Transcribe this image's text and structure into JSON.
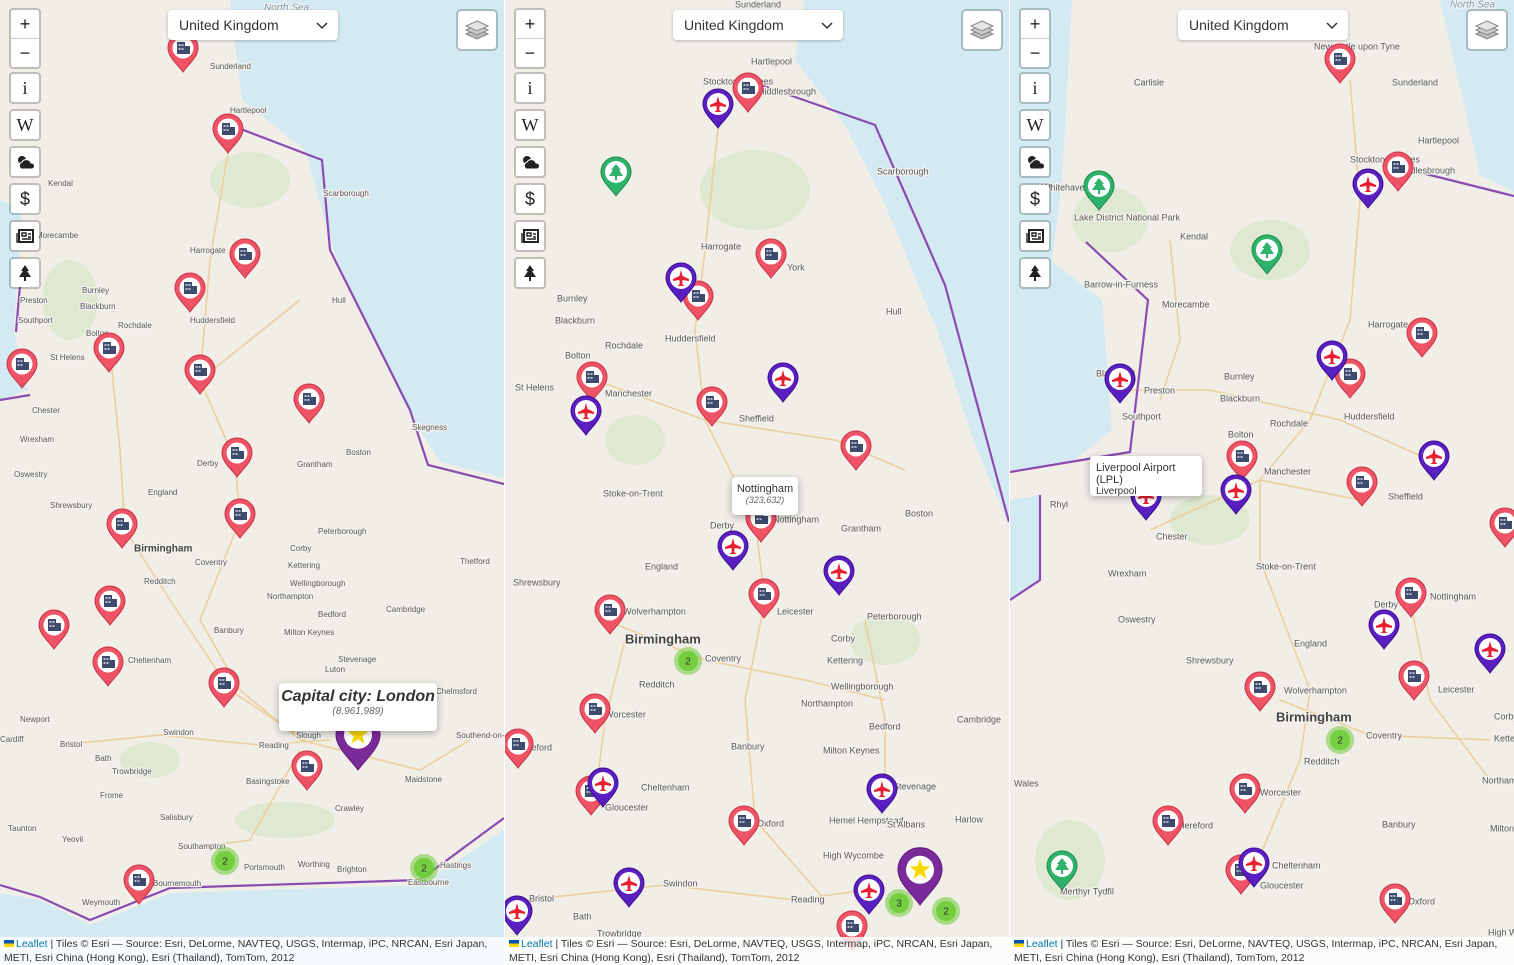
{
  "panels": [
    {
      "country_select": "United Kingdom",
      "zoom_in": "+",
      "zoom_out": "−",
      "info_button": "i",
      "wiki_button": "W",
      "currency_button": "$",
      "popup": {
        "title": "Capital city: London",
        "subtitle": "(8,961,989)"
      },
      "clusters": [
        2,
        2
      ],
      "places": [
        "North Sea",
        "Sunderland",
        "Hartlepool",
        "Scarborough",
        "Kendal",
        "Morecambe",
        "Harrogate",
        "Burnley",
        "Preston",
        "Blackburn",
        "Southport",
        "Huddersfield",
        "Rochdale",
        "Bolton",
        "St Helens",
        "Hull",
        "Chester",
        "Wrexham",
        "Derby",
        "Grantham",
        "Boston",
        "Skegness",
        "Oswestry",
        "England",
        "Shrewsbury",
        "Birmingham",
        "Coventry",
        "Peterborough",
        "Corby",
        "Kettering",
        "Wellingborough",
        "Northampton",
        "Bedford",
        "Cambridge",
        "Milton Keynes",
        "Banbury",
        "Cheltenham",
        "Stevenage",
        "Luton",
        "Redditch",
        "Thetford",
        "Chelmsford",
        "Newport",
        "Cardiff",
        "Bristol",
        "Bath",
        "Swindon",
        "Reading",
        "Slough",
        "Southend-on-Sea",
        "Basingstoke",
        "Maidstone",
        "Trowbridge",
        "Frome",
        "Crawley",
        "Salisbury",
        "Southampton",
        "Portsmouth",
        "Worthing",
        "Brighton",
        "Eastbourne",
        "Hastings",
        "Bournemouth",
        "Weymouth",
        "Taunton",
        "Yeovil"
      ],
      "attribution": {
        "leaflet": "Leaflet",
        "text": "| Tiles © Esri — Source: Esri, DeLorme, NAVTEQ, USGS, Intermap, iPC, NRCAN, Esri Japan, METI, Esri China (Hong Kong), Esri (Thailand), TomTom, 2012"
      }
    },
    {
      "country_select": "United Kingdom",
      "zoom_in": "+",
      "zoom_out": "−",
      "info_button": "i",
      "wiki_button": "W",
      "currency_button": "$",
      "popup": {
        "title": "Nottingham",
        "subtitle": "(323,632)"
      },
      "clusters": [
        2,
        3,
        2
      ],
      "places": [
        "Sunderland",
        "Hartlepool",
        "Stockton-on-Tees",
        "Middlesbrough",
        "Scarborough",
        "Harrogate",
        "York",
        "Burnley",
        "Blackburn",
        "Huddersfield",
        "Rochdale",
        "Hull",
        "Bolton",
        "Manchester",
        "St Helens",
        "Sheffield",
        "Stoke-on-Trent",
        "Derby",
        "Nottingham",
        "Grantham",
        "Boston",
        "England",
        "Shrewsbury",
        "Wolverhampton",
        "Leicester",
        "Peterborough",
        "Birmingham",
        "Corby",
        "Coventry",
        "Kettering",
        "Redditch",
        "Wellingborough",
        "Northampton",
        "Worcester",
        "Bedford",
        "Cambridge",
        "Banbury",
        "Milton Keynes",
        "Hereford",
        "Cheltenham",
        "Stevenage",
        "Gloucester",
        "Oxford",
        "Hemel Hempstead",
        "St Albans",
        "Harlow",
        "High Wycombe",
        "Swindon",
        "Bristol",
        "Reading",
        "Bath",
        "Trowbridge"
      ],
      "attribution": {
        "leaflet": "Leaflet",
        "text": "| Tiles © Esri — Source: Esri, DeLorme, NAVTEQ, USGS, Intermap, iPC, NRCAN, Esri Japan, METI, Esri China (Hong Kong), Esri (Thailand), TomTom, 2012"
      }
    },
    {
      "country_select": "United Kingdom",
      "zoom_in": "+",
      "zoom_out": "−",
      "info_button": "i",
      "wiki_button": "W",
      "currency_button": "$",
      "popup": {
        "title": "Liverpool Airport (LPL)",
        "subtitle": "Liverpool"
      },
      "clusters": [
        2
      ],
      "places": [
        "North Sea",
        "Newcastle upon Tyne",
        "Carlisle",
        "Sunderland",
        "Hartlepool",
        "Stockton-on-Tees",
        "Middlesbrough",
        "Whitehaven",
        "Lake District National Park",
        "Kendal",
        "Barrow-in-Furness",
        "Morecambe",
        "Harrogate",
        "Blackpool",
        "Preston",
        "Burnley",
        "Southport",
        "Blackburn",
        "Huddersfield",
        "Rochdale",
        "Bolton",
        "Manchester",
        "Sheffield",
        "Rhyl",
        "Chester",
        "Wrexham",
        "Stoke-on-Trent",
        "Derby",
        "Nottingham",
        "Oswestry",
        "England",
        "Shrewsbury",
        "Wolverhampton",
        "Leicester",
        "Birmingham",
        "Corby",
        "Coventry",
        "Kettering",
        "Redditch",
        "Northampton",
        "Wales",
        "Worcester",
        "Banbury",
        "Hereford",
        "Milton Keynes",
        "Cheltenham",
        "Gloucester",
        "Merthyr Tydfil",
        "Oxford",
        "High Wycombe"
      ],
      "attribution": {
        "leaflet": "Leaflet",
        "text": "| Tiles © Esri — Source: Esri, DeLorme, NAVTEQ, USGS, Intermap, iPC, NRCAN, Esri Japan, METI, Esri China (Hong Kong), Esri (Thailand), TomTom, 2012"
      }
    }
  ]
}
